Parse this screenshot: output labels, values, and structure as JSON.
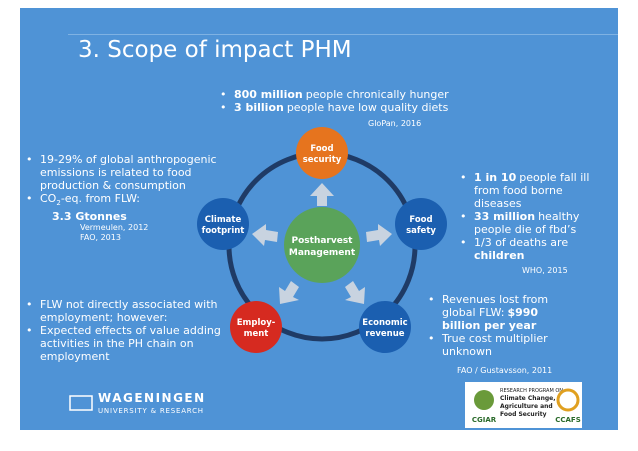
{
  "title": "3. Scope of impact PHM",
  "top": {
    "bullets": [
      {
        "bold": "800 million",
        "text": "people chronically hunger"
      },
      {
        "bold": "3 billion",
        "text": "people have low quality diets"
      }
    ],
    "source": "GloPan, 2016"
  },
  "left_top": {
    "bullets": [
      "19-29% of global anthropogenic emissions is related to food production & consumption",
      [
        "CO",
        "2",
        "-eq. from FLW:"
      ]
    ],
    "bold": "3.3 Gtonnes",
    "sources": [
      "Vermeulen, 2012",
      "FAO, 2013"
    ]
  },
  "right_top": {
    "bullets": [
      {
        "bold": "1 in 10",
        "text": "people fall ill from food borne diseases"
      },
      {
        "bold": "33 million",
        "text": "healthy people die of fbd’s"
      },
      {
        "text": "1/3 of deaths are",
        "bold": "children"
      }
    ],
    "source": "WHO, 2015"
  },
  "left_bottom": {
    "bullets": [
      "FLW not directly associated with employment; however:",
      "Expected effects of value adding activities in the PH chain on employment"
    ]
  },
  "right_bottom": {
    "bullets": [
      {
        "text": "Revenues lost from global FLW:",
        "bold": "$990 billion per year"
      },
      {
        "text": "True cost multiplier unknown"
      }
    ],
    "source": "FAO / Gustavsson, 2011"
  },
  "diagram": {
    "center": [
      "Postharvest",
      "Management"
    ],
    "nodes": [
      [
        "Food",
        "security"
      ],
      [
        "Food",
        "safety"
      ],
      [
        "Economic",
        "revenue"
      ],
      [
        "Employ-",
        "ment"
      ],
      [
        "Climate",
        "footprint"
      ]
    ]
  },
  "footer": {
    "wur": [
      "WAGENINGEN",
      "UNIVERSITY & RESEARCH"
    ],
    "cgiar": "CGIAR",
    "program": [
      "RESEARCH PROGRAM ON",
      "Climate Change,",
      "Agriculture and",
      "Food Security"
    ],
    "ccafs": "CCAFS"
  }
}
